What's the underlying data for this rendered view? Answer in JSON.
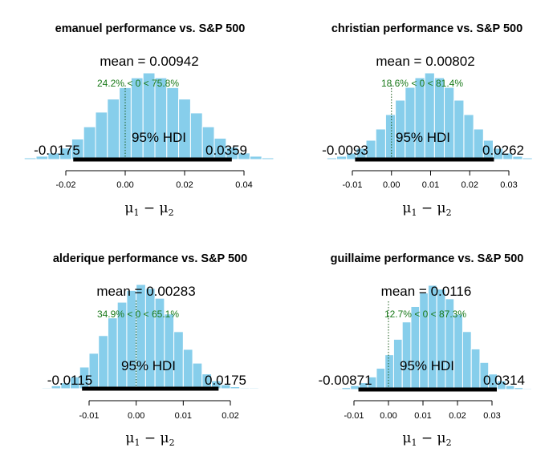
{
  "colors": {
    "bar": "#87CEEB",
    "bar_edge": "#ffffff",
    "hdi": "#000000",
    "pct": "#1a7a1a"
  },
  "chart_data": [
    {
      "type": "histogram",
      "title": "emanuel performance vs. S&P 500",
      "xlabel": "μ1 − μ2",
      "mean_label": "mean = 0.00942",
      "mean": 0.00942,
      "pct_label": "24.2% < 0 < 75.8%",
      "hdi_label": "95% HDI",
      "hdi_low_label": "-0.0175",
      "hdi_high_label": "0.0359",
      "hdi": [
        -0.0175,
        0.0359
      ],
      "ticks": [
        -0.02,
        0.0,
        0.02,
        0.04
      ],
      "tick_labels": [
        "-0.02",
        "0.00",
        "0.02",
        "0.04"
      ],
      "xlim": [
        -0.034,
        0.052
      ],
      "bin_start": -0.034,
      "bin_width": 0.004,
      "counts": [
        2,
        4,
        8,
        14,
        25,
        40,
        58,
        74,
        88,
        100,
        106,
        100,
        88,
        74,
        57,
        40,
        26,
        15,
        8,
        4,
        2,
        1
      ]
    },
    {
      "type": "histogram",
      "title": "christian performance vs. S&P 500",
      "xlabel": "μ1 − μ2",
      "mean_label": "mean = 0.00802",
      "mean": 0.00802,
      "pct_label": "18.6% < 0 < 81.4%",
      "hdi_label": "95% HDI",
      "hdi_low_label": "-0.0093",
      "hdi_high_label": "0.0262",
      "hdi": [
        -0.0093,
        0.0262
      ],
      "ticks": [
        -0.01,
        0.0,
        0.01,
        0.02,
        0.03
      ],
      "tick_labels": [
        "-0.01",
        "0.00",
        "0.01",
        "0.02",
        "0.03"
      ],
      "xlim": [
        -0.019,
        0.036
      ],
      "bin_start": -0.019,
      "bin_width": 0.0025,
      "counts": [
        1,
        2,
        4,
        8,
        14,
        24,
        38,
        56,
        74,
        90,
        102,
        108,
        102,
        90,
        74,
        56,
        38,
        24,
        14,
        8,
        4,
        2
      ]
    },
    {
      "type": "histogram",
      "title": "alderique performance vs. S&P 500",
      "xlabel": "μ1 − μ2",
      "mean_label": "mean = 0.00283",
      "mean": 0.00283,
      "pct_label": "34.9% < 0 < 65.1%",
      "hdi_label": "95% HDI",
      "hdi_low_label": "-0.0115",
      "hdi_high_label": "0.0175",
      "hdi": [
        -0.0115,
        0.0175
      ],
      "ticks": [
        -0.01,
        0.0,
        0.01,
        0.02
      ],
      "tick_labels": [
        "-0.01",
        "0.00",
        "0.01",
        "0.02"
      ],
      "xlim": [
        -0.02,
        0.026
      ],
      "bin_start": -0.02,
      "bin_width": 0.002,
      "counts": [
        1,
        3,
        6,
        12,
        22,
        36,
        54,
        72,
        88,
        100,
        106,
        102,
        92,
        76,
        58,
        40,
        26,
        15,
        8,
        4,
        2,
        1,
        1
      ]
    },
    {
      "type": "histogram",
      "title": "guillaime performance vs. S&P 500",
      "xlabel": "μ1 − μ2",
      "mean_label": "mean = 0.0116",
      "mean": 0.0116,
      "pct_label": "12.7% < 0 < 87.3%",
      "hdi_label": "95% HDI",
      "hdi_low_label": "-0.00871",
      "hdi_high_label": "0.0314",
      "hdi": [
        -0.00871,
        0.0314
      ],
      "ticks": [
        -0.01,
        0.0,
        0.01,
        0.02,
        0.03
      ],
      "tick_labels": [
        "-0.01",
        "0.00",
        "0.01",
        "0.02",
        "0.03"
      ],
      "xlim": [
        -0.016,
        0.04
      ],
      "bin_start": -0.016,
      "bin_width": 0.0025,
      "counts": [
        1,
        2,
        4,
        7,
        13,
        22,
        36,
        52,
        70,
        86,
        100,
        108,
        104,
        94,
        78,
        60,
        42,
        28,
        16,
        9,
        4,
        2,
        1
      ]
    }
  ]
}
